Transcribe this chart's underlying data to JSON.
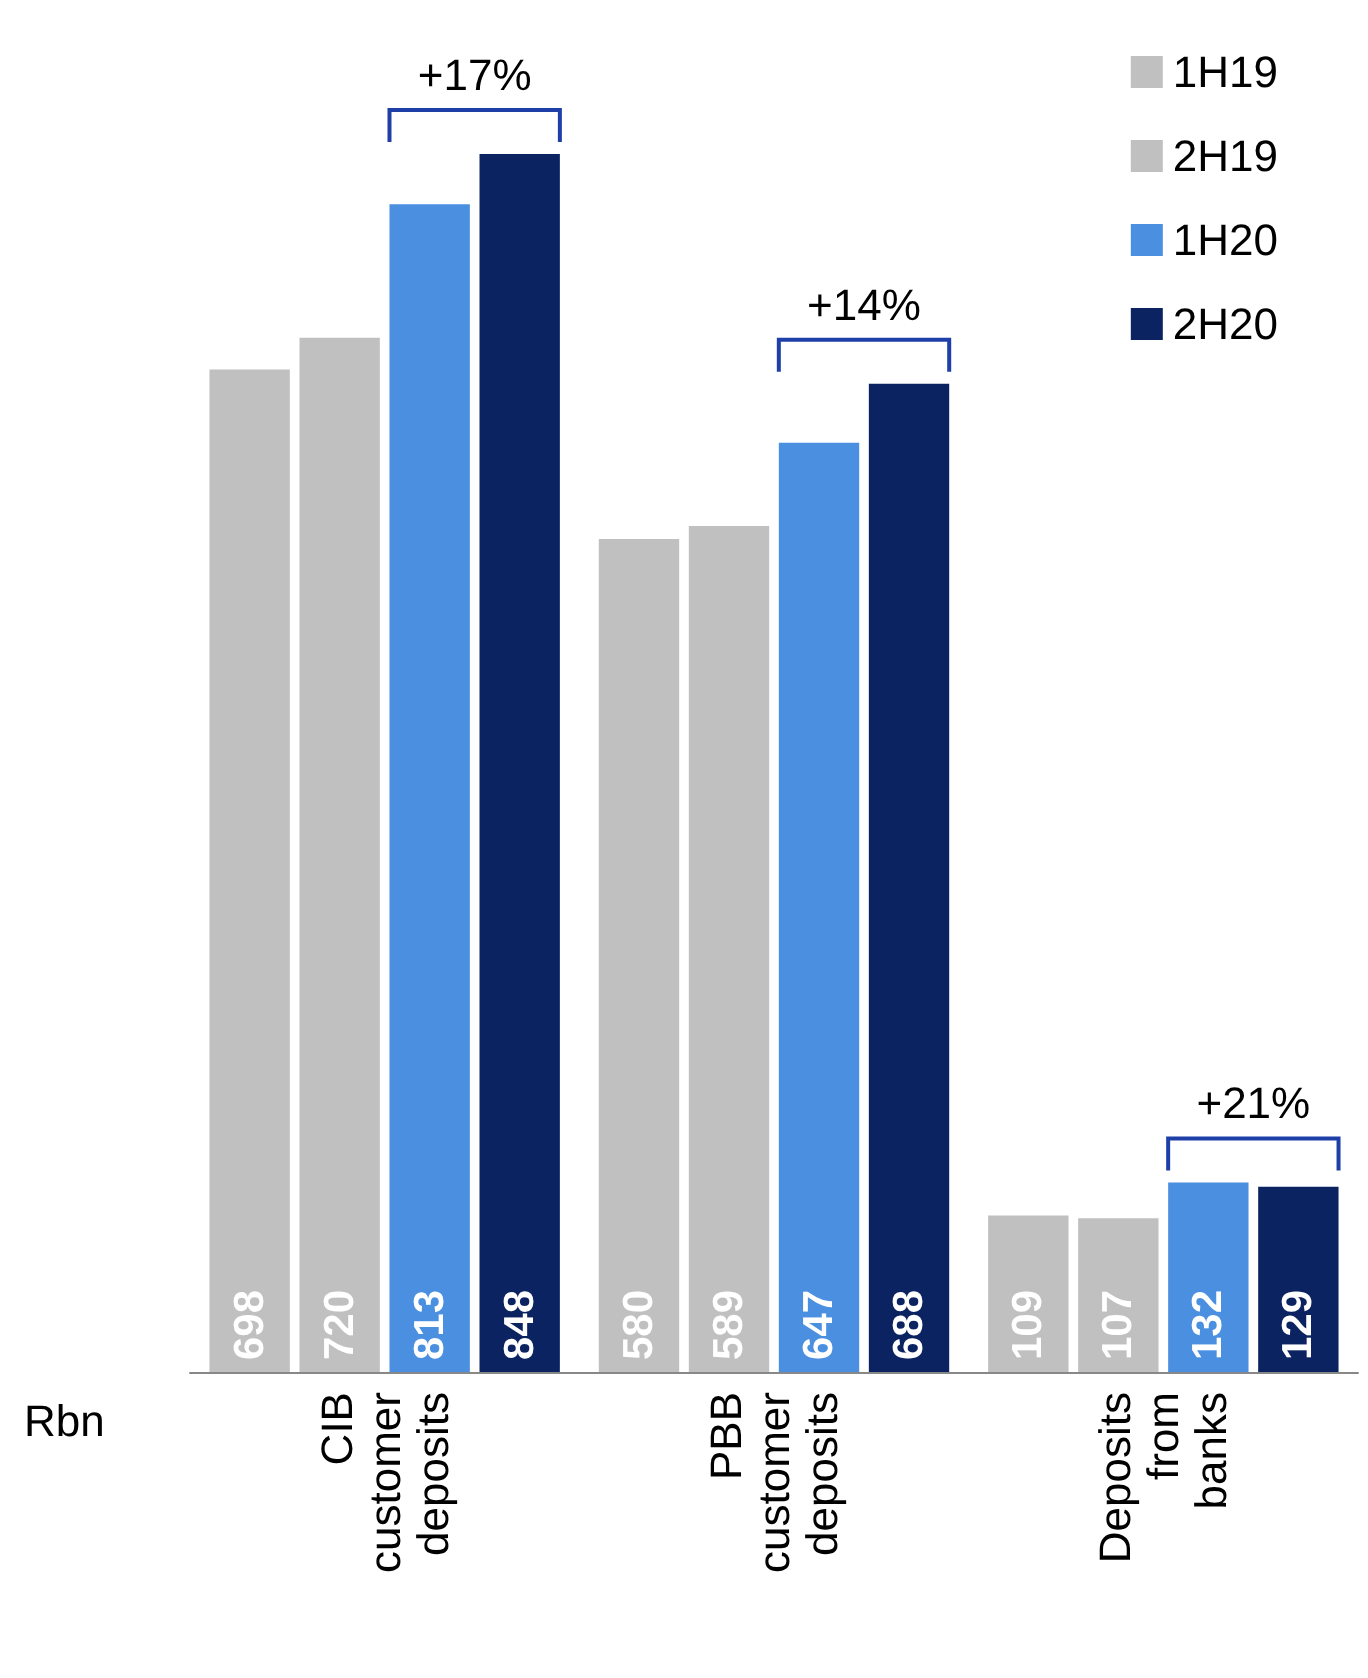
{
  "chart_data": {
    "type": "bar",
    "categories": [
      "CIB customer deposits",
      "PBB customer deposits",
      "Deposits from banks"
    ],
    "series": [
      {
        "name": "1H19",
        "color": "#c0c0c0",
        "values": [
          698,
          580,
          109
        ]
      },
      {
        "name": "2H19",
        "color": "#c0c0c0",
        "values": [
          720,
          589,
          107
        ]
      },
      {
        "name": "1H20",
        "color": "#4a8fe0",
        "values": [
          813,
          647,
          132
        ]
      },
      {
        "name": "2H20",
        "color": "#0b2461",
        "values": [
          848,
          688,
          129
        ]
      }
    ],
    "data_labels": true,
    "legend": "top right",
    "annotations": [
      "+17%",
      "+14%",
      "+21%",
      "Rbn"
    ]
  }
}
